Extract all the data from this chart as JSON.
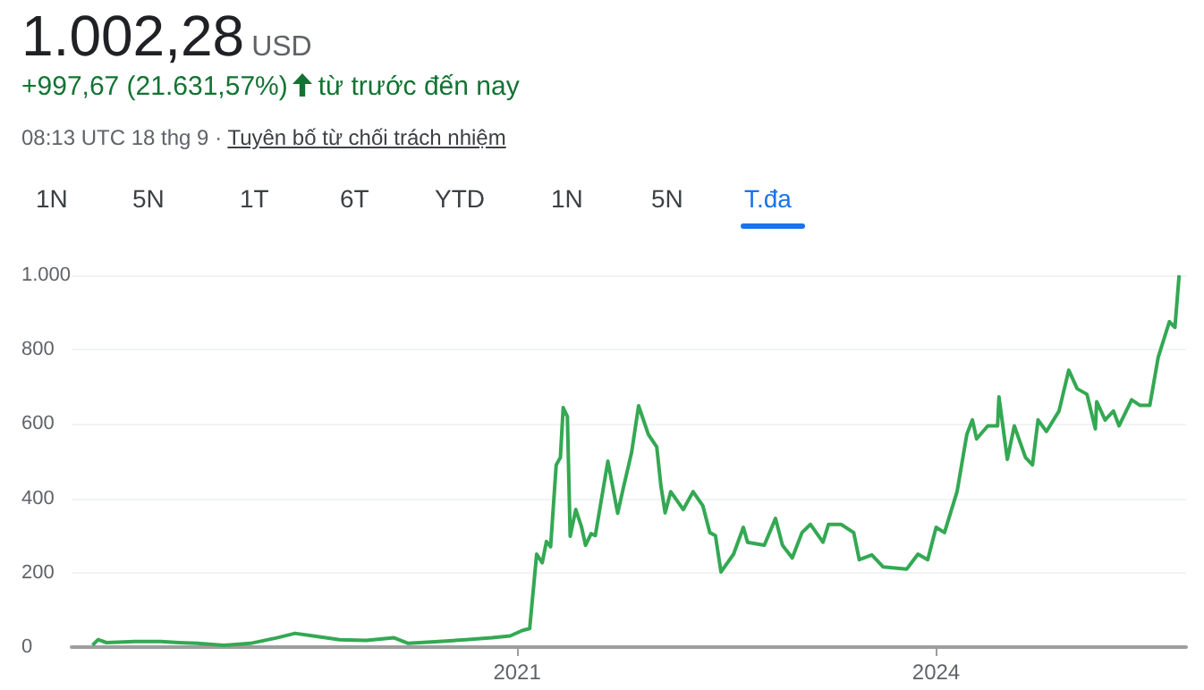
{
  "chart_data": {
    "type": "line",
    "title": "1.002,28",
    "annotations": [
      "USD",
      "+997,67 (21.631,57%)",
      "từ trước đến nay",
      "08:13 UTC 18 thg 9 ·",
      "Tuyên bố từ chối trách nhiệm",
      "1N",
      "5N",
      "1T",
      "6T",
      "YTD",
      "1N",
      "5N",
      "T.đa"
    ],
    "series": [
      {
        "color": "#34a853",
        "x": [
          2017.96,
          2018.0,
          2018.06,
          2018.26,
          2018.45,
          2018.58,
          2018.71,
          2018.9,
          2019.09,
          2019.28,
          2019.41,
          2019.54,
          2019.73,
          2019.92,
          2020.12,
          2020.22,
          2020.44,
          2020.63,
          2020.82,
          2020.95,
          2021.04,
          2021.09,
          2021.14,
          2021.18,
          2021.21,
          2021.24,
          2021.28,
          2021.31,
          2021.33,
          2021.36,
          2021.38,
          2021.42,
          2021.46,
          2021.49,
          2021.53,
          2021.56,
          2021.65,
          2021.72,
          2021.76,
          2021.82,
          2021.87,
          2021.94,
          2022.0,
          2022.03,
          2022.06,
          2022.1,
          2022.19,
          2022.26,
          2022.33,
          2022.38,
          2022.42,
          2022.46,
          2022.55,
          2022.62,
          2022.65,
          2022.77,
          2022.85,
          2022.9,
          2022.97,
          2023.04,
          2023.1,
          2023.19,
          2023.23,
          2023.32,
          2023.41,
          2023.45,
          2023.54,
          2023.62,
          2023.79,
          2023.87,
          2023.94,
          2024.0,
          2024.06,
          2024.15,
          2024.22,
          2024.26,
          2024.29,
          2024.37,
          2024.44,
          2024.45,
          2024.51,
          2024.56,
          2024.64,
          2024.69,
          2024.73,
          2024.79,
          2024.88,
          2024.95,
          2025.01,
          2025.08,
          2025.14,
          2025.15,
          2025.21,
          2025.27,
          2025.31,
          2025.4,
          2025.46,
          2025.53,
          2025.59,
          2025.67,
          2025.71,
          2025.74
        ],
        "values": [
          5,
          20,
          12,
          15,
          15,
          12,
          10,
          5,
          10,
          25,
          37,
          30,
          20,
          18,
          25,
          10,
          15,
          20,
          25,
          30,
          45,
          50,
          250,
          227,
          284,
          270,
          490,
          510,
          644,
          620,
          298,
          370,
          325,
          274,
          305,
          300,
          500,
          360,
          427,
          524,
          649,
          572,
          538,
          433,
          361,
          418,
          370,
          418,
          380,
          308,
          300,
          202,
          250,
          322,
          282,
          274,
          346,
          274,
          240,
          308,
          330,
          282,
          330,
          330,
          308,
          235,
          248,
          216,
          210,
          250,
          235,
          322,
          308,
          418,
          572,
          611,
          560,
          595,
          595,
          673,
          505,
          595,
          510,
          490,
          611,
          580,
          635,
          745,
          695,
          680,
          587,
          660,
          611,
          635,
          595,
          665,
          650,
          650,
          779,
          875,
          860,
          1000
        ]
      }
    ],
    "xlim": [
      2017.81,
      2025.79
    ],
    "xticks": [
      2021,
      2024
    ],
    "ylim": [
      0,
      1000
    ],
    "yticks": [
      0,
      200,
      400,
      600,
      800,
      {
        "value": 1000,
        "label": "1.000"
      }
    ],
    "grid": "y",
    "marker": "none",
    "line_style": "solid"
  }
}
